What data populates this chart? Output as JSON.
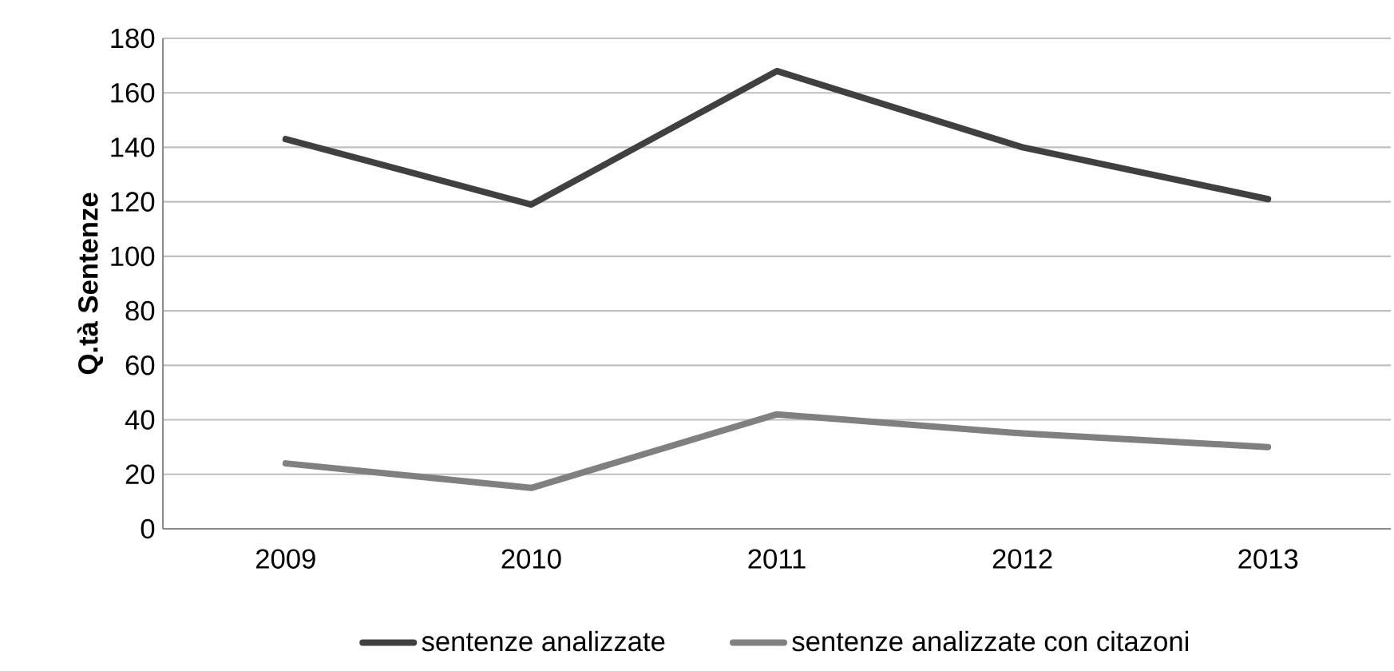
{
  "chart_data": {
    "type": "line",
    "ylabel": "Q.tà Sentenze",
    "categories": [
      "2009",
      "2010",
      "2011",
      "2012",
      "2013"
    ],
    "series": [
      {
        "name": "sentenze analizzate",
        "color": "#404040",
        "values": [
          143,
          119,
          168,
          140,
          121
        ]
      },
      {
        "name": "sentenze analizzate con citazoni",
        "color": "#808080",
        "values": [
          24,
          15,
          42,
          35,
          30
        ]
      }
    ],
    "ylim": [
      0,
      180
    ],
    "yticks": [
      0,
      20,
      40,
      60,
      80,
      100,
      120,
      140,
      160,
      180
    ],
    "grid": "y",
    "legend": "bottom",
    "marker": "none",
    "line_style": "solid"
  }
}
